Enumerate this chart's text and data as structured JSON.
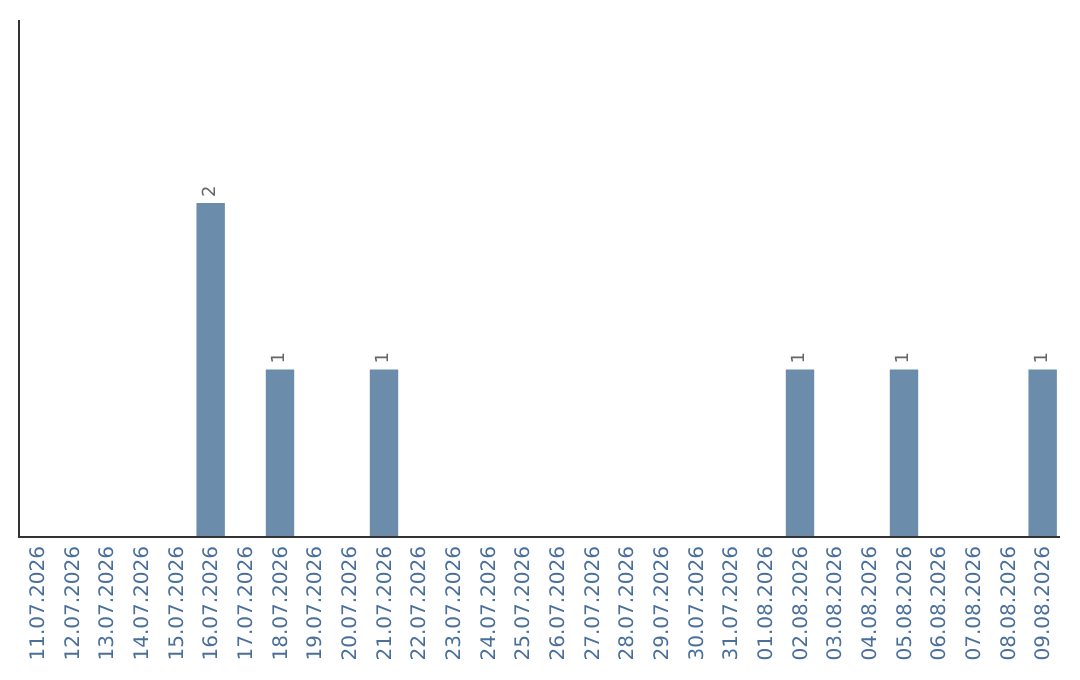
{
  "chart_data": {
    "type": "bar",
    "categories": [
      "11.07.2026",
      "12.07.2026",
      "13.07.2026",
      "14.07.2026",
      "15.07.2026",
      "16.07.2026",
      "17.07.2026",
      "18.07.2026",
      "19.07.2026",
      "20.07.2026",
      "21.07.2026",
      "22.07.2026",
      "23.07.2026",
      "24.07.2026",
      "25.07.2026",
      "26.07.2026",
      "27.07.2026",
      "28.07.2026",
      "29.07.2026",
      "30.07.2026",
      "31.07.2026",
      "01.08.2026",
      "02.08.2026",
      "03.08.2026",
      "04.08.2026",
      "05.08.2026",
      "06.08.2026",
      "07.08.2026",
      "08.08.2026",
      "09.08.2026"
    ],
    "values": [
      0,
      0,
      0,
      0,
      0,
      2,
      0,
      1,
      0,
      0,
      1,
      0,
      0,
      0,
      0,
      0,
      0,
      0,
      0,
      0,
      0,
      0,
      1,
      0,
      0,
      1,
      0,
      0,
      0,
      1
    ],
    "value_labels": [
      null,
      null,
      null,
      null,
      null,
      "2",
      null,
      "1",
      null,
      null,
      "1",
      null,
      null,
      null,
      null,
      null,
      null,
      null,
      null,
      null,
      null,
      null,
      "1",
      null,
      null,
      "1",
      null,
      null,
      null,
      "1"
    ],
    "color": "#6b8caa",
    "ylim": [
      0,
      3.1
    ],
    "tick_labels": "x",
    "legend": false
  }
}
